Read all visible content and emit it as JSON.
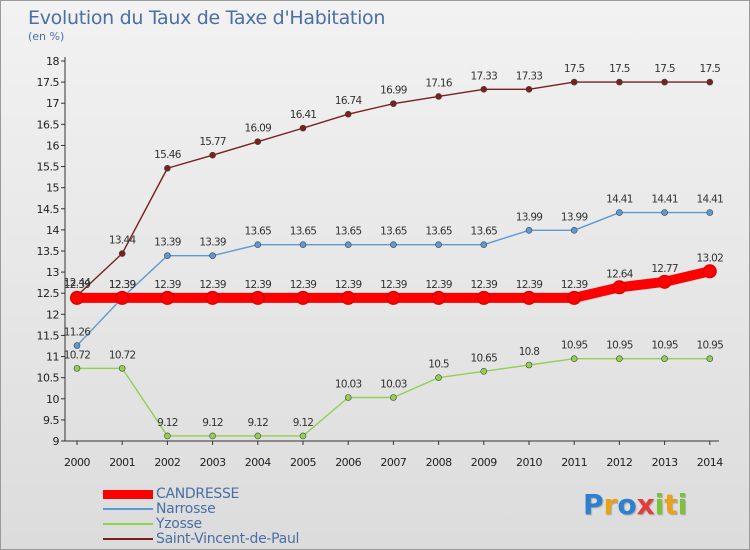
{
  "title": "Evolution du Taux de Taxe d'Habitation",
  "subtitle": "(en %)",
  "brand": {
    "letters": [
      "P",
      "r",
      "o",
      "x",
      "i",
      "t",
      "i"
    ],
    "colors": [
      "#2f7fd1",
      "#e8a21a",
      "#2f7fd1",
      "#e23c3c",
      "#7cc13b",
      "#e8a21a",
      "#7cc13b"
    ]
  },
  "chart_data": {
    "type": "line",
    "title": "Evolution du Taux de Taxe d'Habitation",
    "ylabel": "(en %)",
    "xlabel": "",
    "x": [
      "2000",
      "2001",
      "2002",
      "2003",
      "2004",
      "2005",
      "2006",
      "2007",
      "2008",
      "2009",
      "2010",
      "2011",
      "2012",
      "2013",
      "2014"
    ],
    "ylim": [
      9,
      18
    ],
    "yticks": [
      "9",
      "9.5",
      "10",
      "10.5",
      "11",
      "11.5",
      "12",
      "12.5",
      "13",
      "13.5",
      "14",
      "14.5",
      "15",
      "15.5",
      "16",
      "16.5",
      "17",
      "17.5",
      "18"
    ],
    "grid": false,
    "legend_position": "bottom-left",
    "series": [
      {
        "name": "CANDRESSE",
        "color": "#ff0000",
        "values": [
          12.39,
          12.39,
          12.39,
          12.39,
          12.39,
          12.39,
          12.39,
          12.39,
          12.39,
          12.39,
          12.39,
          12.39,
          12.64,
          12.77,
          13.02
        ],
        "labels": [
          "12.39",
          "12.39",
          "12.39",
          "12.39",
          "12.39",
          "12.39",
          "12.39",
          "12.39",
          "12.39",
          "12.39",
          "12.39",
          "12.39",
          "12.64",
          "12.77",
          "13.02"
        ]
      },
      {
        "name": "Narrosse",
        "color": "#5b9bd5",
        "values": [
          11.26,
          12.39,
          13.39,
          13.39,
          13.65,
          13.65,
          13.65,
          13.65,
          13.65,
          13.65,
          13.99,
          13.99,
          14.41,
          14.41,
          14.41
        ],
        "labels": [
          "11.26",
          "12.39",
          "13.39",
          "13.39",
          "13.65",
          "13.65",
          "13.65",
          "13.65",
          "13.65",
          "13.65",
          "13.99",
          "13.99",
          "14.41",
          "14.41",
          "14.41"
        ]
      },
      {
        "name": "Yzosse",
        "color": "#92d050",
        "values": [
          10.72,
          10.72,
          9.12,
          9.12,
          9.12,
          9.12,
          10.03,
          10.03,
          10.5,
          10.65,
          10.8,
          10.95,
          10.95,
          10.95,
          10.95
        ],
        "labels": [
          "10.72",
          "10.72",
          "9.12",
          "9.12",
          "9.12",
          "9.12",
          "10.03",
          "10.03",
          "10.5",
          "10.65",
          "10.8",
          "10.95",
          "10.95",
          "10.95",
          "10.95"
        ]
      },
      {
        "name": "Saint-Vincent-de-Paul",
        "color": "#7b1f1f",
        "values": [
          12.44,
          13.44,
          15.46,
          15.77,
          16.09,
          16.41,
          16.74,
          16.99,
          17.16,
          17.33,
          17.33,
          17.5,
          17.5,
          17.5,
          17.5
        ],
        "labels": [
          "12.44",
          "13.44",
          "15.46",
          "15.77",
          "16.09",
          "16.41",
          "16.74",
          "16.99",
          "17.16",
          "17.33",
          "17.33",
          "17.5",
          "17.5",
          "17.5",
          "17.5"
        ]
      }
    ]
  }
}
